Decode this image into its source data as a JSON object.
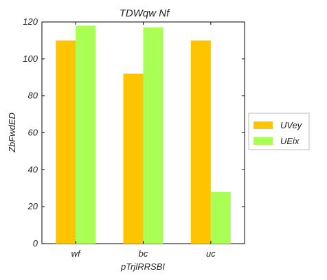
{
  "chart_data": {
    "type": "bar",
    "title": "TDWqw Nf",
    "xlabel": "pTrjlRRSBI",
    "ylabel": "ZbFwdED",
    "categories": [
      "wf",
      "bc",
      "uc"
    ],
    "series": [
      {
        "name": "UVey",
        "values": [
          110,
          92,
          110
        ],
        "color": "#ffc400"
      },
      {
        "name": "UEix",
        "values": [
          118,
          117,
          28
        ],
        "color": "#aaff55"
      }
    ],
    "ylim": [
      0,
      120
    ],
    "yticks": [
      0,
      20,
      40,
      60,
      80,
      100,
      120
    ],
    "grid": false,
    "legend_position": "right"
  }
}
